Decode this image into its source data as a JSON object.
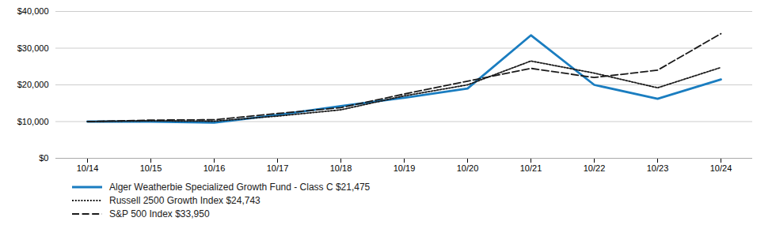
{
  "chart_data": {
    "type": "line",
    "categories": [
      "10/14",
      "10/15",
      "10/16",
      "10/17",
      "10/18",
      "10/19",
      "10/20",
      "10/21",
      "10/22",
      "10/23",
      "10/24"
    ],
    "series": [
      {
        "name": "Alger Weatherbie Specialized Growth Fund - Class C $21,475",
        "color": "#1a7dc0",
        "line_style": "solid",
        "values": [
          10000,
          10000,
          9700,
          11800,
          14200,
          16500,
          19000,
          33500,
          20000,
          16200,
          21475
        ]
      },
      {
        "name": "Russell 2500 Growth Index $24,743",
        "color": "#1a1a1a",
        "line_style": "dotted",
        "values": [
          10000,
          10200,
          10100,
          11500,
          13200,
          17000,
          20000,
          26500,
          23200,
          19200,
          24743
        ]
      },
      {
        "name": "S&P 500 Index $33,950",
        "color": "#1a1a1a",
        "line_style": "dashed",
        "values": [
          10000,
          10400,
          10500,
          12200,
          13800,
          17500,
          21000,
          24500,
          22000,
          24000,
          33950
        ]
      }
    ],
    "ylim": [
      0,
      40000
    ],
    "yticks": [
      {
        "value": 0,
        "label": "$0"
      },
      {
        "value": 10000,
        "label": "$10,000"
      },
      {
        "value": 20000,
        "label": "$20,000"
      },
      {
        "value": 30000,
        "label": "$30,000"
      },
      {
        "value": 40000,
        "label": "$40,000"
      }
    ],
    "grid": true,
    "legend": "bottom"
  }
}
